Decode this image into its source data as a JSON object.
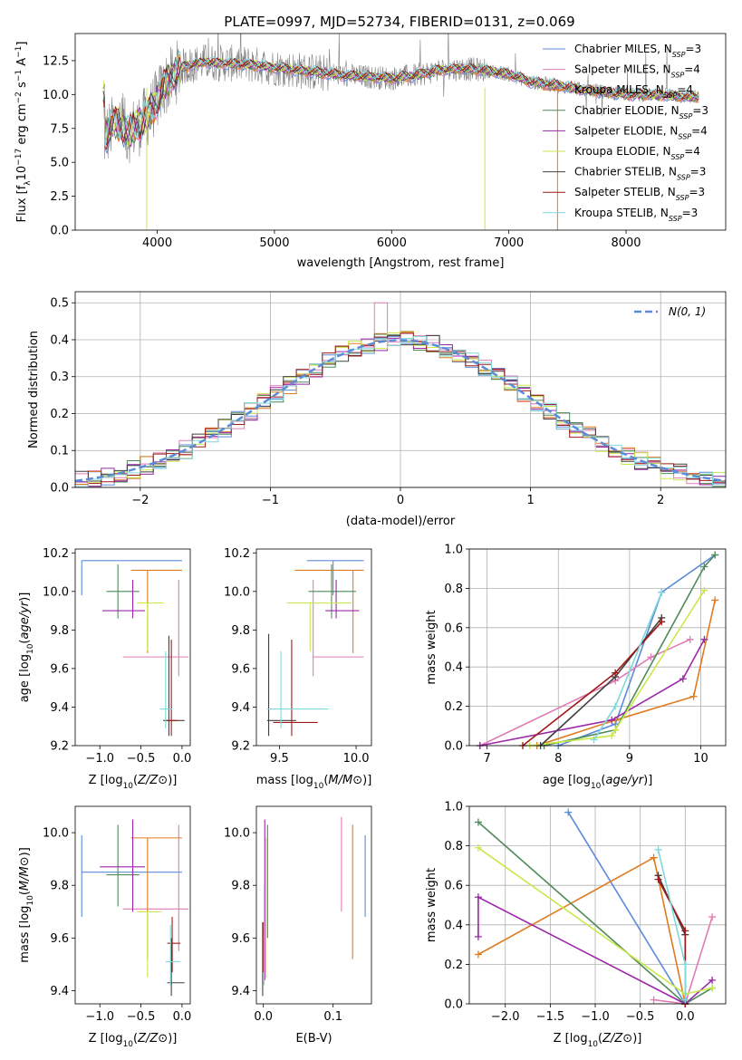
{
  "figure": {
    "title": "PLATE=0997, MJD=52734, FIBERID=0131, z=0.069"
  },
  "colors": {
    "data_spectrum": "#808080",
    "Chabrier MILES": "#5b8bd9",
    "Salpeter MILES": "#e07cb4",
    "Kroupa MILES": "#e07b1e",
    "Chabrier ELODIE": "#4f8a5a",
    "Salpeter ELODIE": "#9b27a8",
    "Kroupa ELODIE": "#c9e84a",
    "Chabrier STELIB": "#404040",
    "Salpeter STELIB": "#a01818",
    "Kroupa STELIB": "#7fd8dc",
    "normal": "#5b8bd9"
  },
  "chart_data": [
    {
      "id": "spectrum",
      "type": "line",
      "title": "PLATE=0997, MJD=52734, FIBERID=0131, z=0.069",
      "xlabel": "wavelength [Angstrom, rest frame]",
      "ylabel_parts": [
        "Flux [f",
        "λ",
        "10",
        "−17",
        " erg cm",
        "−2",
        " s",
        "−1",
        " A",
        "−1",
        "]"
      ],
      "xlim": [
        3300,
        8850
      ],
      "ylim": [
        0,
        14.5
      ],
      "xticks": [
        4000,
        5000,
        6000,
        7000,
        8000
      ],
      "yticks": [
        0.0,
        2.5,
        5.0,
        7.5,
        10.0,
        12.5
      ],
      "ytick_labels": [
        "0.0",
        "2.5",
        "5.0",
        "7.5",
        "10.0",
        "12.5"
      ],
      "continuum": {
        "x": [
          3550,
          3650,
          3750,
          3850,
          3950,
          4050,
          4200,
          4400,
          4600,
          4800,
          5000,
          5200,
          5400,
          5600,
          5800,
          6000,
          6200,
          6400,
          6600,
          6800,
          7000,
          7200,
          7400,
          7600,
          7800,
          8000,
          8200,
          8400,
          8600
        ],
        "y": [
          6.8,
          8.0,
          7.2,
          7.8,
          8.8,
          10.5,
          12.0,
          12.4,
          12.3,
          12.2,
          12.0,
          11.8,
          11.6,
          11.4,
          11.3,
          11.2,
          11.4,
          11.8,
          11.9,
          11.8,
          11.5,
          10.9,
          10.7,
          10.4,
          10.2,
          10.0,
          10.0,
          9.9,
          9.8
        ]
      },
      "legend_position": "upper-right",
      "series": [
        {
          "name": "Chabrier MILES",
          "nssp": 3
        },
        {
          "name": "Salpeter MILES",
          "nssp": 4
        },
        {
          "name": "Kroupa MILES",
          "nssp": 4
        },
        {
          "name": "Chabrier ELODIE",
          "nssp": 3
        },
        {
          "name": "Salpeter ELODIE",
          "nssp": 4
        },
        {
          "name": "Kroupa ELODIE",
          "nssp": 4
        },
        {
          "name": "Chabrier STELIB",
          "nssp": 3
        },
        {
          "name": "Salpeter STELIB",
          "nssp": 3
        },
        {
          "name": "Kroupa STELIB",
          "nssp": 3
        }
      ]
    },
    {
      "id": "residuals",
      "type": "histogram",
      "xlabel": "(data-model)/error",
      "ylabel": "Normed distribution",
      "xlim": [
        -2.5,
        2.5
      ],
      "ylim": [
        0,
        0.53
      ],
      "xticks": [
        -2,
        -1,
        0,
        1,
        2
      ],
      "xtick_labels": [
        "−2",
        "−1",
        "0",
        "1",
        "2"
      ],
      "yticks": [
        0.0,
        0.1,
        0.2,
        0.3,
        0.4,
        0.5
      ],
      "ytick_labels": [
        "0.0",
        "0.1",
        "0.2",
        "0.3",
        "0.4",
        "0.5"
      ],
      "grid": true,
      "bin_width": 0.1,
      "bin_start": -2.5,
      "legend_label": "N(0, 1)",
      "legend_position": "upper-right"
    },
    {
      "id": "z-age",
      "type": "errorbar",
      "xlabel": "Z [log10(Z/Z⊙)]",
      "ylabel": "age [log10(age/yr)]",
      "xlim": [
        -1.3,
        0.1
      ],
      "ylim": [
        9.2,
        10.22
      ],
      "xticks": [
        -1.0,
        -0.5,
        0.0
      ],
      "xtick_labels": [
        "−1.0",
        "−0.5",
        "0.0"
      ],
      "yticks": [
        9.2,
        9.4,
        9.6,
        9.8,
        10.0,
        10.2
      ],
      "ytick_labels": [
        "9.2",
        "9.4",
        "9.6",
        "9.8",
        "10.0",
        "10.2"
      ],
      "points": [
        {
          "series": "Chabrier MILES",
          "x": -1.22,
          "y": 10.16,
          "xlo": -1.22,
          "xhi": 0.0,
          "ylo": 9.98,
          "yhi": 10.16
        },
        {
          "series": "Salpeter MILES",
          "x": -0.04,
          "y": 9.66,
          "xlo": -0.72,
          "xhi": 0.08,
          "ylo": 9.56,
          "yhi": 10.06
        },
        {
          "series": "Kroupa MILES",
          "x": -0.42,
          "y": 10.11,
          "xlo": -0.62,
          "xhi": 0.0,
          "ylo": 9.68,
          "yhi": 10.11
        },
        {
          "series": "Chabrier ELODIE",
          "x": -0.78,
          "y": 10.0,
          "xlo": -0.92,
          "xhi": -0.52,
          "ylo": 9.86,
          "yhi": 10.14
        },
        {
          "series": "Salpeter ELODIE",
          "x": -0.6,
          "y": 9.9,
          "xlo": -0.97,
          "xhi": -0.45,
          "ylo": 9.86,
          "yhi": 10.06
        },
        {
          "series": "Kroupa ELODIE",
          "x": -0.42,
          "y": 9.94,
          "xlo": -0.55,
          "xhi": -0.22,
          "ylo": 9.69,
          "yhi": 9.94
        },
        {
          "series": "Chabrier STELIB",
          "x": -0.16,
          "y": 9.33,
          "xlo": -0.23,
          "xhi": 0.03,
          "ylo": 9.25,
          "yhi": 9.77
        },
        {
          "series": "Salpeter STELIB",
          "x": -0.13,
          "y": 9.33,
          "xlo": -0.2,
          "xhi": -0.05,
          "ylo": 9.25,
          "yhi": 9.75
        },
        {
          "series": "Kroupa STELIB",
          "x": -0.2,
          "y": 9.39,
          "xlo": -0.27,
          "xhi": -0.12,
          "ylo": 9.29,
          "yhi": 9.69
        }
      ]
    },
    {
      "id": "mass-age",
      "type": "errorbar",
      "xlabel": "mass [log10(M/M⊙)]",
      "ylabel": "",
      "xlim": [
        9.35,
        10.1
      ],
      "ylim": [
        9.2,
        10.22
      ],
      "xticks": [
        9.5,
        10.0
      ],
      "xtick_labels": [
        "9.5",
        "10.0"
      ],
      "yticks": [
        9.2,
        9.4,
        9.6,
        9.8,
        10.0,
        10.2
      ],
      "ytick_labels": [
        "9.2",
        "9.4",
        "9.6",
        "9.8",
        "10.0",
        "10.2"
      ],
      "points": [
        {
          "series": "Chabrier MILES",
          "x": 9.85,
          "y": 10.16,
          "xlo": 9.68,
          "xhi": 10.05,
          "ylo": 9.98,
          "yhi": 10.16
        },
        {
          "series": "Salpeter MILES",
          "x": 9.72,
          "y": 9.66,
          "xlo": 9.72,
          "xhi": 10.05,
          "ylo": 9.56,
          "yhi": 10.06
        },
        {
          "series": "Kroupa MILES",
          "x": 9.98,
          "y": 10.11,
          "xlo": 9.6,
          "xhi": 10.05,
          "ylo": 9.68,
          "yhi": 10.11
        },
        {
          "series": "Chabrier ELODIE",
          "x": 9.84,
          "y": 10.0,
          "xlo": 9.69,
          "xhi": 10.0,
          "ylo": 9.86,
          "yhi": 10.14
        },
        {
          "series": "Salpeter ELODIE",
          "x": 9.87,
          "y": 9.9,
          "xlo": 9.8,
          "xhi": 10.02,
          "ylo": 9.86,
          "yhi": 10.06
        },
        {
          "series": "Kroupa ELODIE",
          "x": 9.7,
          "y": 9.94,
          "xlo": 9.55,
          "xhi": 9.97,
          "ylo": 9.69,
          "yhi": 9.94
        },
        {
          "series": "Chabrier STELIB",
          "x": 9.43,
          "y": 9.33,
          "xlo": 9.42,
          "xhi": 9.61,
          "ylo": 9.25,
          "yhi": 9.78
        },
        {
          "series": "Salpeter STELIB",
          "x": 9.58,
          "y": 9.32,
          "xlo": 9.46,
          "xhi": 9.75,
          "ylo": 9.25,
          "yhi": 9.75
        },
        {
          "series": "Kroupa STELIB",
          "x": 9.51,
          "y": 9.39,
          "xlo": 9.42,
          "xhi": 9.82,
          "ylo": 9.29,
          "yhi": 9.69
        }
      ]
    },
    {
      "id": "age-weight",
      "type": "line",
      "xlabel": "age [log10(age/yr)]",
      "ylabel": "mass weight",
      "xlim": [
        6.75,
        10.35
      ],
      "ylim": [
        0,
        1.0
      ],
      "xticks": [
        7,
        8,
        9,
        10
      ],
      "xtick_labels": [
        "7",
        "8",
        "9",
        "10"
      ],
      "yticks": [
        0.0,
        0.2,
        0.4,
        0.6,
        0.8,
        1.0
      ],
      "ytick_labels": [
        "0.0",
        "0.2",
        "0.4",
        "0.6",
        "0.8",
        "1.0"
      ],
      "grid": true,
      "series": [
        {
          "name": "Chabrier MILES",
          "x": [
            8.0,
            8.8,
            9.45,
            10.2
          ],
          "y": [
            0.0,
            0.11,
            0.78,
            0.97
          ]
        },
        {
          "name": "Salpeter MILES",
          "x": [
            6.9,
            8.8,
            9.3,
            9.85
          ],
          "y": [
            0.0,
            0.33,
            0.45,
            0.54
          ]
        },
        {
          "name": "Kroupa MILES",
          "x": [
            7.7,
            8.8,
            9.9,
            10.2
          ],
          "y": [
            0.0,
            0.13,
            0.25,
            0.74
          ]
        },
        {
          "name": "Chabrier ELODIE",
          "x": [
            7.8,
            8.8,
            10.05,
            10.2
          ],
          "y": [
            0.0,
            0.08,
            0.91,
            0.97
          ]
        },
        {
          "name": "Salpeter ELODIE",
          "x": [
            6.9,
            8.75,
            9.75,
            10.05
          ],
          "y": [
            0.0,
            0.13,
            0.34,
            0.54
          ]
        },
        {
          "name": "Kroupa ELODIE",
          "x": [
            7.6,
            8.75,
            8.8,
            10.05
          ],
          "y": [
            0.0,
            0.05,
            0.08,
            0.79
          ]
        },
        {
          "name": "Chabrier STELIB",
          "x": [
            7.75,
            8.8,
            9.45
          ],
          "y": [
            0.0,
            0.35,
            0.65
          ]
        },
        {
          "name": "Salpeter STELIB",
          "x": [
            7.5,
            8.8,
            9.45
          ],
          "y": [
            0.0,
            0.37,
            0.63
          ]
        },
        {
          "name": "Kroupa STELIB",
          "x": [
            8.5,
            8.8,
            9.45
          ],
          "y": [
            0.03,
            0.2,
            0.78
          ]
        }
      ]
    },
    {
      "id": "z-mass",
      "type": "errorbar",
      "xlabel": "Z [log10(Z/Z⊙)]",
      "ylabel": "mass [log10(M/M⊙)]",
      "xlim": [
        -1.3,
        0.1
      ],
      "ylim": [
        9.35,
        10.1
      ],
      "xticks": [
        -1.0,
        -0.5,
        0.0
      ],
      "xtick_labels": [
        "−1.0",
        "−0.5",
        "0.0"
      ],
      "yticks": [
        9.4,
        9.6,
        9.8,
        10.0
      ],
      "ytick_labels": [
        "9.4",
        "9.6",
        "9.8",
        "10.0"
      ],
      "points": [
        {
          "series": "Chabrier MILES",
          "x": -1.22,
          "y": 9.85,
          "xlo": -1.22,
          "xhi": 0.0,
          "ylo": 9.68,
          "yhi": 9.99
        },
        {
          "series": "Salpeter MILES",
          "x": -0.04,
          "y": 9.71,
          "xlo": -0.72,
          "xhi": 0.08,
          "ylo": 9.55,
          "yhi": 10.03
        },
        {
          "series": "Kroupa MILES",
          "x": -0.42,
          "y": 9.98,
          "xlo": -0.62,
          "xhi": 0.0,
          "ylo": 9.52,
          "yhi": 9.98
        },
        {
          "series": "Chabrier ELODIE",
          "x": -0.78,
          "y": 9.84,
          "xlo": -0.92,
          "xhi": -0.52,
          "ylo": 9.72,
          "yhi": 10.03
        },
        {
          "series": "Salpeter ELODIE",
          "x": -0.6,
          "y": 9.87,
          "xlo": -1.0,
          "xhi": -0.45,
          "ylo": 9.7,
          "yhi": 10.05
        },
        {
          "series": "Kroupa ELODIE",
          "x": -0.42,
          "y": 9.7,
          "xlo": -0.55,
          "xhi": -0.25,
          "ylo": 9.45,
          "yhi": 9.7
        },
        {
          "series": "Chabrier STELIB",
          "x": -0.13,
          "y": 9.43,
          "xlo": -0.18,
          "xhi": 0.03,
          "ylo": 9.38,
          "yhi": 9.6
        },
        {
          "series": "Salpeter STELIB",
          "x": -0.12,
          "y": 9.58,
          "xlo": -0.18,
          "xhi": -0.02,
          "ylo": 9.47,
          "yhi": 9.68
        },
        {
          "series": "Kroupa STELIB",
          "x": -0.14,
          "y": 9.51,
          "xlo": -0.2,
          "xhi": -0.02,
          "ylo": 9.42,
          "yhi": 9.65
        }
      ]
    },
    {
      "id": "ebv-mass",
      "type": "errorbar",
      "xlabel": "E(B-V)",
      "ylabel": "",
      "xlim": [
        -0.01,
        0.155
      ],
      "ylim": [
        9.35,
        10.1
      ],
      "xticks": [
        0.0,
        0.1
      ],
      "xtick_labels": [
        "0.0",
        "0.1"
      ],
      "yticks": [
        9.4,
        9.6,
        9.8,
        10.0
      ],
      "ytick_labels": [
        "9.4",
        "9.6",
        "9.8",
        "10.0"
      ],
      "points": [
        {
          "series": "Chabrier MILES",
          "x": 0.146,
          "y": 9.85,
          "xlo": 0.146,
          "xhi": 0.146,
          "ylo": 9.68,
          "yhi": 9.99
        },
        {
          "series": "Salpeter MILES",
          "x": 0.112,
          "y": 9.71,
          "xlo": 0.112,
          "xhi": 0.112,
          "ylo": 9.7,
          "yhi": 10.06
        },
        {
          "series": "Kroupa MILES",
          "x": 0.128,
          "y": 9.98,
          "xlo": 0.128,
          "xhi": 0.128,
          "ylo": 9.52,
          "yhi": 10.03
        },
        {
          "series": "Chabrier ELODIE",
          "x": 0.006,
          "y": 9.84,
          "xlo": 0.006,
          "xhi": 0.006,
          "ylo": 9.6,
          "yhi": 10.03
        },
        {
          "series": "Salpeter ELODIE",
          "x": 0.002,
          "y": 9.87,
          "xlo": 0.002,
          "xhi": 0.002,
          "ylo": 9.44,
          "yhi": 10.05
        },
        {
          "series": "Kroupa ELODIE",
          "x": 0.004,
          "y": 9.7,
          "xlo": 0.004,
          "xhi": 0.004,
          "ylo": 9.45,
          "yhi": 9.98
        },
        {
          "series": "Chabrier STELIB",
          "x": -0.001,
          "y": 9.43,
          "xlo": -0.001,
          "xhi": -0.001,
          "ylo": 9.38,
          "yhi": 9.66
        },
        {
          "series": "Salpeter STELIB",
          "x": 0.0,
          "y": 9.58,
          "xlo": 0.0,
          "xhi": 0.0,
          "ylo": 9.47,
          "yhi": 9.66
        },
        {
          "series": "Kroupa STELIB",
          "x": 0.001,
          "y": 9.51,
          "xlo": 0.001,
          "xhi": 0.001,
          "ylo": 9.42,
          "yhi": 9.8
        }
      ]
    },
    {
      "id": "z-weight",
      "type": "line",
      "xlabel": "Z [log10(Z/Z⊙)]",
      "ylabel": "mass weight",
      "xlim": [
        -2.4,
        0.45
      ],
      "ylim": [
        0,
        1.0
      ],
      "xticks": [
        -2.0,
        -1.5,
        -1.0,
        -0.5,
        0.0
      ],
      "xtick_labels": [
        "−2.0",
        "−1.5",
        "−1.0",
        "−0.5",
        "0.0"
      ],
      "yticks": [
        0.0,
        0.2,
        0.4,
        0.6,
        0.8,
        1.0
      ],
      "ytick_labels": [
        "0.0",
        "0.2",
        "0.4",
        "0.6",
        "0.8",
        "1.0"
      ],
      "grid": true,
      "series": [
        {
          "name": "Chabrier MILES",
          "x": [
            -1.3,
            0.0,
            0.0
          ],
          "y": [
            0.97,
            0.0,
            0.0
          ]
        },
        {
          "name": "Salpeter MILES",
          "x": [
            -0.35,
            0.0,
            0.0,
            0.3
          ],
          "y": [
            0.02,
            0.0,
            0.0,
            0.44
          ]
        },
        {
          "name": "Kroupa MILES",
          "x": [
            -2.3,
            -0.35,
            0.0,
            0.0
          ],
          "y": [
            0.25,
            0.74,
            0.0,
            0.0
          ]
        },
        {
          "name": "Chabrier ELODIE",
          "x": [
            -2.3,
            0.0,
            0.3
          ],
          "y": [
            0.92,
            0.0,
            0.08
          ]
        },
        {
          "name": "Salpeter ELODIE",
          "x": [
            -2.3,
            -2.3,
            0.0,
            0.3
          ],
          "y": [
            0.34,
            0.54,
            0.0,
            0.12
          ]
        },
        {
          "name": "Kroupa ELODIE",
          "x": [
            -2.3,
            0.0,
            0.3
          ],
          "y": [
            0.79,
            0.05,
            0.08
          ]
        },
        {
          "name": "Chabrier STELIB",
          "x": [
            -0.3,
            0.0,
            0.0
          ],
          "y": [
            0.65,
            0.35,
            0.0
          ]
        },
        {
          "name": "Salpeter STELIB",
          "x": [
            -0.3,
            0.0,
            0.0
          ],
          "y": [
            0.63,
            0.37,
            0.0
          ]
        },
        {
          "name": "Kroupa STELIB",
          "x": [
            -0.3,
            0.0,
            0.0
          ],
          "y": [
            0.78,
            0.2,
            0.02
          ]
        }
      ]
    }
  ]
}
